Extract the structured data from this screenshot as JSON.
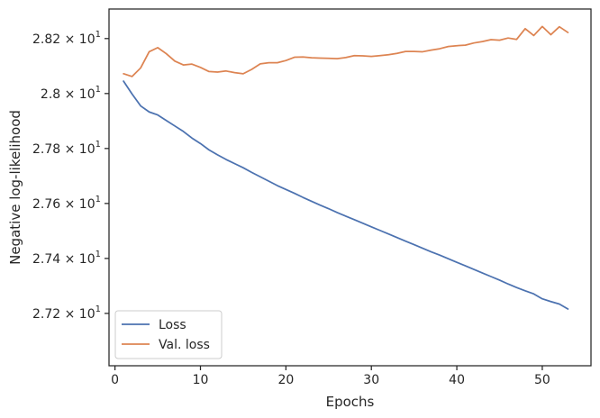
{
  "chart_data": {
    "type": "line",
    "xlabel": "Epochs",
    "ylabel": "Negative log-likelihood",
    "x_ticks": [
      0,
      10,
      20,
      30,
      40,
      50
    ],
    "xlim": [
      -0.7,
      55.7
    ],
    "ylim": [
      27.0095,
      28.3075
    ],
    "y_ticks": [
      27.2,
      27.4,
      27.6,
      27.8,
      28.0,
      28.2
    ],
    "y_tick_labels": [
      {
        "mantissa": "2.72",
        "exponent": "1"
      },
      {
        "mantissa": "2.74",
        "exponent": "1"
      },
      {
        "mantissa": "2.76",
        "exponent": "1"
      },
      {
        "mantissa": "2.78",
        "exponent": "1"
      },
      {
        "mantissa": "2.8",
        "exponent": "1"
      },
      {
        "mantissa": "2.82",
        "exponent": "1"
      }
    ],
    "legend": {
      "placement": "lower-left"
    },
    "grid": false,
    "series": [
      {
        "name": "Loss",
        "color": "#4c72b0",
        "x": [
          1,
          2,
          3,
          4,
          5,
          6,
          7,
          8,
          9,
          10,
          11,
          12,
          13,
          14,
          15,
          16,
          17,
          18,
          19,
          20,
          21,
          22,
          23,
          24,
          25,
          26,
          27,
          28,
          29,
          30,
          31,
          32,
          33,
          34,
          35,
          36,
          37,
          38,
          39,
          40,
          41,
          42,
          43,
          44,
          45,
          46,
          47,
          48,
          49,
          50,
          51,
          52,
          53
        ],
        "values": [
          28.045,
          27.998,
          27.955,
          27.933,
          27.922,
          27.902,
          27.882,
          27.862,
          27.838,
          27.818,
          27.795,
          27.777,
          27.76,
          27.745,
          27.73,
          27.713,
          27.697,
          27.681,
          27.665,
          27.651,
          27.637,
          27.622,
          27.608,
          27.594,
          27.581,
          27.567,
          27.554,
          27.541,
          27.528,
          27.515,
          27.502,
          27.489,
          27.476,
          27.463,
          27.45,
          27.437,
          27.424,
          27.412,
          27.399,
          27.386,
          27.373,
          27.36,
          27.347,
          27.334,
          27.321,
          27.307,
          27.294,
          27.282,
          27.271,
          27.253,
          27.243,
          27.234,
          27.216
        ]
      },
      {
        "name": "Val. loss",
        "color": "#dd8452",
        "x": [
          1,
          2,
          3,
          4,
          5,
          6,
          7,
          8,
          9,
          10,
          11,
          12,
          13,
          14,
          15,
          16,
          17,
          18,
          19,
          20,
          21,
          22,
          23,
          24,
          25,
          26,
          27,
          28,
          29,
          30,
          31,
          32,
          33,
          34,
          35,
          36,
          37,
          38,
          39,
          40,
          41,
          42,
          43,
          44,
          45,
          46,
          47,
          48,
          49,
          50,
          51,
          52,
          53
        ],
        "values": [
          28.072,
          28.062,
          28.093,
          28.152,
          28.167,
          28.145,
          28.118,
          28.104,
          28.107,
          28.095,
          28.08,
          28.078,
          28.082,
          28.076,
          28.072,
          28.088,
          28.108,
          28.112,
          28.112,
          28.12,
          28.132,
          28.133,
          28.13,
          28.129,
          28.128,
          28.127,
          28.131,
          28.138,
          28.137,
          28.135,
          28.138,
          28.141,
          28.146,
          28.153,
          28.153,
          28.152,
          28.158,
          28.163,
          28.171,
          28.174,
          28.176,
          28.184,
          28.189,
          28.196,
          28.194,
          28.202,
          28.197,
          28.236,
          28.211,
          28.244,
          28.214,
          28.243,
          28.222
        ]
      }
    ]
  }
}
